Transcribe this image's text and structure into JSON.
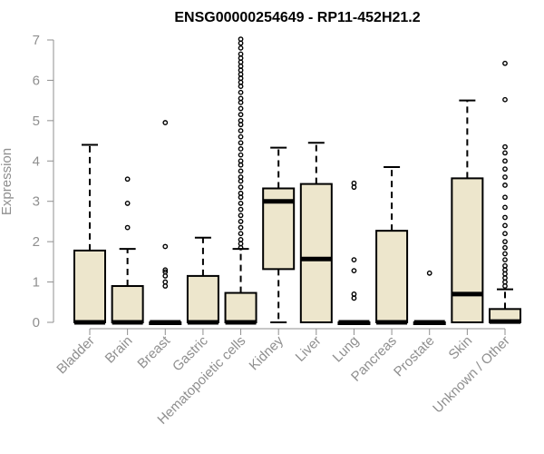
{
  "chart_data": {
    "type": "boxplot",
    "title": "ENSG00000254649 - RP11-452H21.2",
    "xlabel": "",
    "ylabel": "Expression",
    "ylim": [
      0,
      7
    ],
    "yticks": [
      0,
      1,
      2,
      3,
      4,
      5,
      6,
      7
    ],
    "grid": false,
    "colors": {
      "box_fill": "#ede6cc",
      "box_stroke": "#000000",
      "axis": "#8f8f8f",
      "title": "#000000"
    },
    "categories": [
      "Bladder",
      "Brain",
      "Breast",
      "Gastric",
      "Hematopoietic cells",
      "Kidney",
      "Liver",
      "Lung",
      "Pancreas",
      "Prostate",
      "Skin",
      "Unknown / Other"
    ],
    "boxes": [
      {
        "category": "Bladder",
        "whisker_low": 0,
        "q1": 0,
        "median": 0,
        "q3": 1.78,
        "whisker_high": 4.4,
        "outliers": []
      },
      {
        "category": "Brain",
        "whisker_low": 0,
        "q1": 0,
        "median": 0,
        "q3": 0.9,
        "whisker_high": 1.82,
        "outliers": [
          2.35,
          2.95,
          3.55
        ]
      },
      {
        "category": "Breast",
        "whisker_low": 0,
        "q1": 0,
        "median": 0,
        "q3": 0,
        "whisker_high": 0,
        "outliers": [
          0.9,
          1.0,
          1.15,
          1.25,
          1.3,
          1.88,
          4.95
        ]
      },
      {
        "category": "Gastric",
        "whisker_low": 0,
        "q1": 0,
        "median": 0,
        "q3": 1.15,
        "whisker_high": 2.1,
        "outliers": []
      },
      {
        "category": "Hematopoietic cells",
        "whisker_low": 0,
        "q1": 0,
        "median": 0,
        "q3": 0.73,
        "whisker_high": 1.82,
        "outliers": [
          1.85,
          1.95,
          2.05,
          2.2,
          2.35,
          2.5,
          2.65,
          2.8,
          2.95,
          3.1,
          3.2,
          3.35,
          3.5,
          3.6,
          3.75,
          3.9,
          4.0,
          4.15,
          4.3,
          4.45,
          4.6,
          4.75,
          4.9,
          5.0,
          5.15,
          5.3,
          5.45,
          5.55,
          5.7,
          5.85,
          5.95,
          6.05,
          6.15,
          6.25,
          6.35,
          6.45,
          6.55,
          6.65,
          6.8,
          6.92,
          7.02
        ]
      },
      {
        "category": "Kidney",
        "whisker_low": 0,
        "q1": 1.32,
        "median": 3.0,
        "q3": 3.32,
        "whisker_high": 4.33,
        "outliers": []
      },
      {
        "category": "Liver",
        "whisker_low": 0,
        "q1": 0,
        "median": 1.57,
        "q3": 3.43,
        "whisker_high": 4.45,
        "outliers": []
      },
      {
        "category": "Lung",
        "whisker_low": 0,
        "q1": 0,
        "median": 0,
        "q3": 0,
        "whisker_high": 0,
        "outliers": [
          0.6,
          0.7,
          1.28,
          1.55,
          3.35,
          3.45
        ]
      },
      {
        "category": "Pancreas",
        "whisker_low": 0,
        "q1": 0,
        "median": 0,
        "q3": 2.27,
        "whisker_high": 3.85,
        "outliers": []
      },
      {
        "category": "Prostate",
        "whisker_low": 0,
        "q1": 0,
        "median": 0,
        "q3": 0,
        "whisker_high": 0,
        "outliers": [
          1.22
        ]
      },
      {
        "category": "Skin",
        "whisker_low": 0,
        "q1": 0,
        "median": 0.7,
        "q3": 3.57,
        "whisker_high": 5.5,
        "outliers": []
      },
      {
        "category": "Unknown / Other",
        "whisker_low": 0,
        "q1": 0,
        "median": 0.02,
        "q3": 0.33,
        "whisker_high": 0.82,
        "outliers": [
          0.9,
          1.0,
          1.1,
          1.2,
          1.3,
          1.4,
          1.55,
          1.7,
          1.85,
          2.0,
          2.2,
          2.4,
          2.6,
          2.85,
          3.1,
          3.4,
          3.6,
          3.8,
          4.0,
          4.2,
          4.35,
          5.52,
          6.42
        ]
      }
    ]
  }
}
